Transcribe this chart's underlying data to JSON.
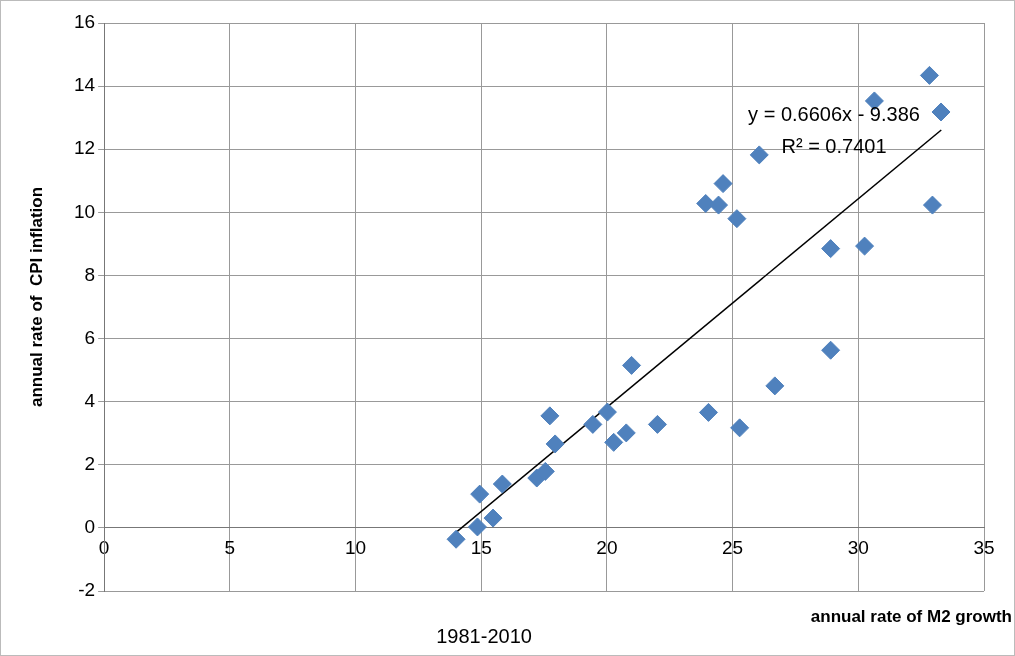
{
  "chart_data": {
    "type": "scatter",
    "xlabel": "annual rate of M2 growth",
    "ylabel": "annual rate of  CPI inflation",
    "xlim": [
      0,
      35
    ],
    "xticks": [
      0,
      5,
      10,
      15,
      20,
      25,
      30,
      35
    ],
    "ylim": [
      -2,
      16
    ],
    "yticks": [
      -2,
      0,
      2,
      4,
      6,
      8,
      10,
      12,
      14,
      16
    ],
    "grid": true,
    "legend": false,
    "marker": "diamond",
    "series": [
      {
        "color": "#4f81bd",
        "x": [
          14.0,
          14.85,
          14.94,
          15.47,
          15.84,
          17.21,
          17.55,
          17.73,
          17.94,
          19.44,
          20.02,
          20.27,
          20.77,
          20.98,
          22.01,
          24.04,
          25.28,
          32.83,
          30.64,
          33.29,
          26.06,
          24.62,
          23.93,
          24.44,
          25.17,
          32.95,
          28.9,
          30.25,
          28.9,
          26.68
        ],
        "values": [
          -0.36,
          0.03,
          1.07,
          0.31,
          1.39,
          1.58,
          1.79,
          3.55,
          2.66,
          3.28,
          3.67,
          2.71,
          3.01,
          5.15,
          3.28,
          3.66,
          3.17,
          14.34,
          13.53,
          13.18,
          11.82,
          10.91,
          10.28,
          10.23,
          9.8,
          10.23,
          8.85,
          8.93,
          5.63,
          4.5
        ]
      },
      {
        "type": "line",
        "color": "#000000",
        "marker": "none",
        "x": [
          14.0,
          33.3
        ],
        "values": [
          -0.14,
          12.61
        ]
      }
    ],
    "annotations": [
      "y = 0.6606x - 9.386",
      "R² = 0.7401",
      "1981-2010"
    ]
  }
}
